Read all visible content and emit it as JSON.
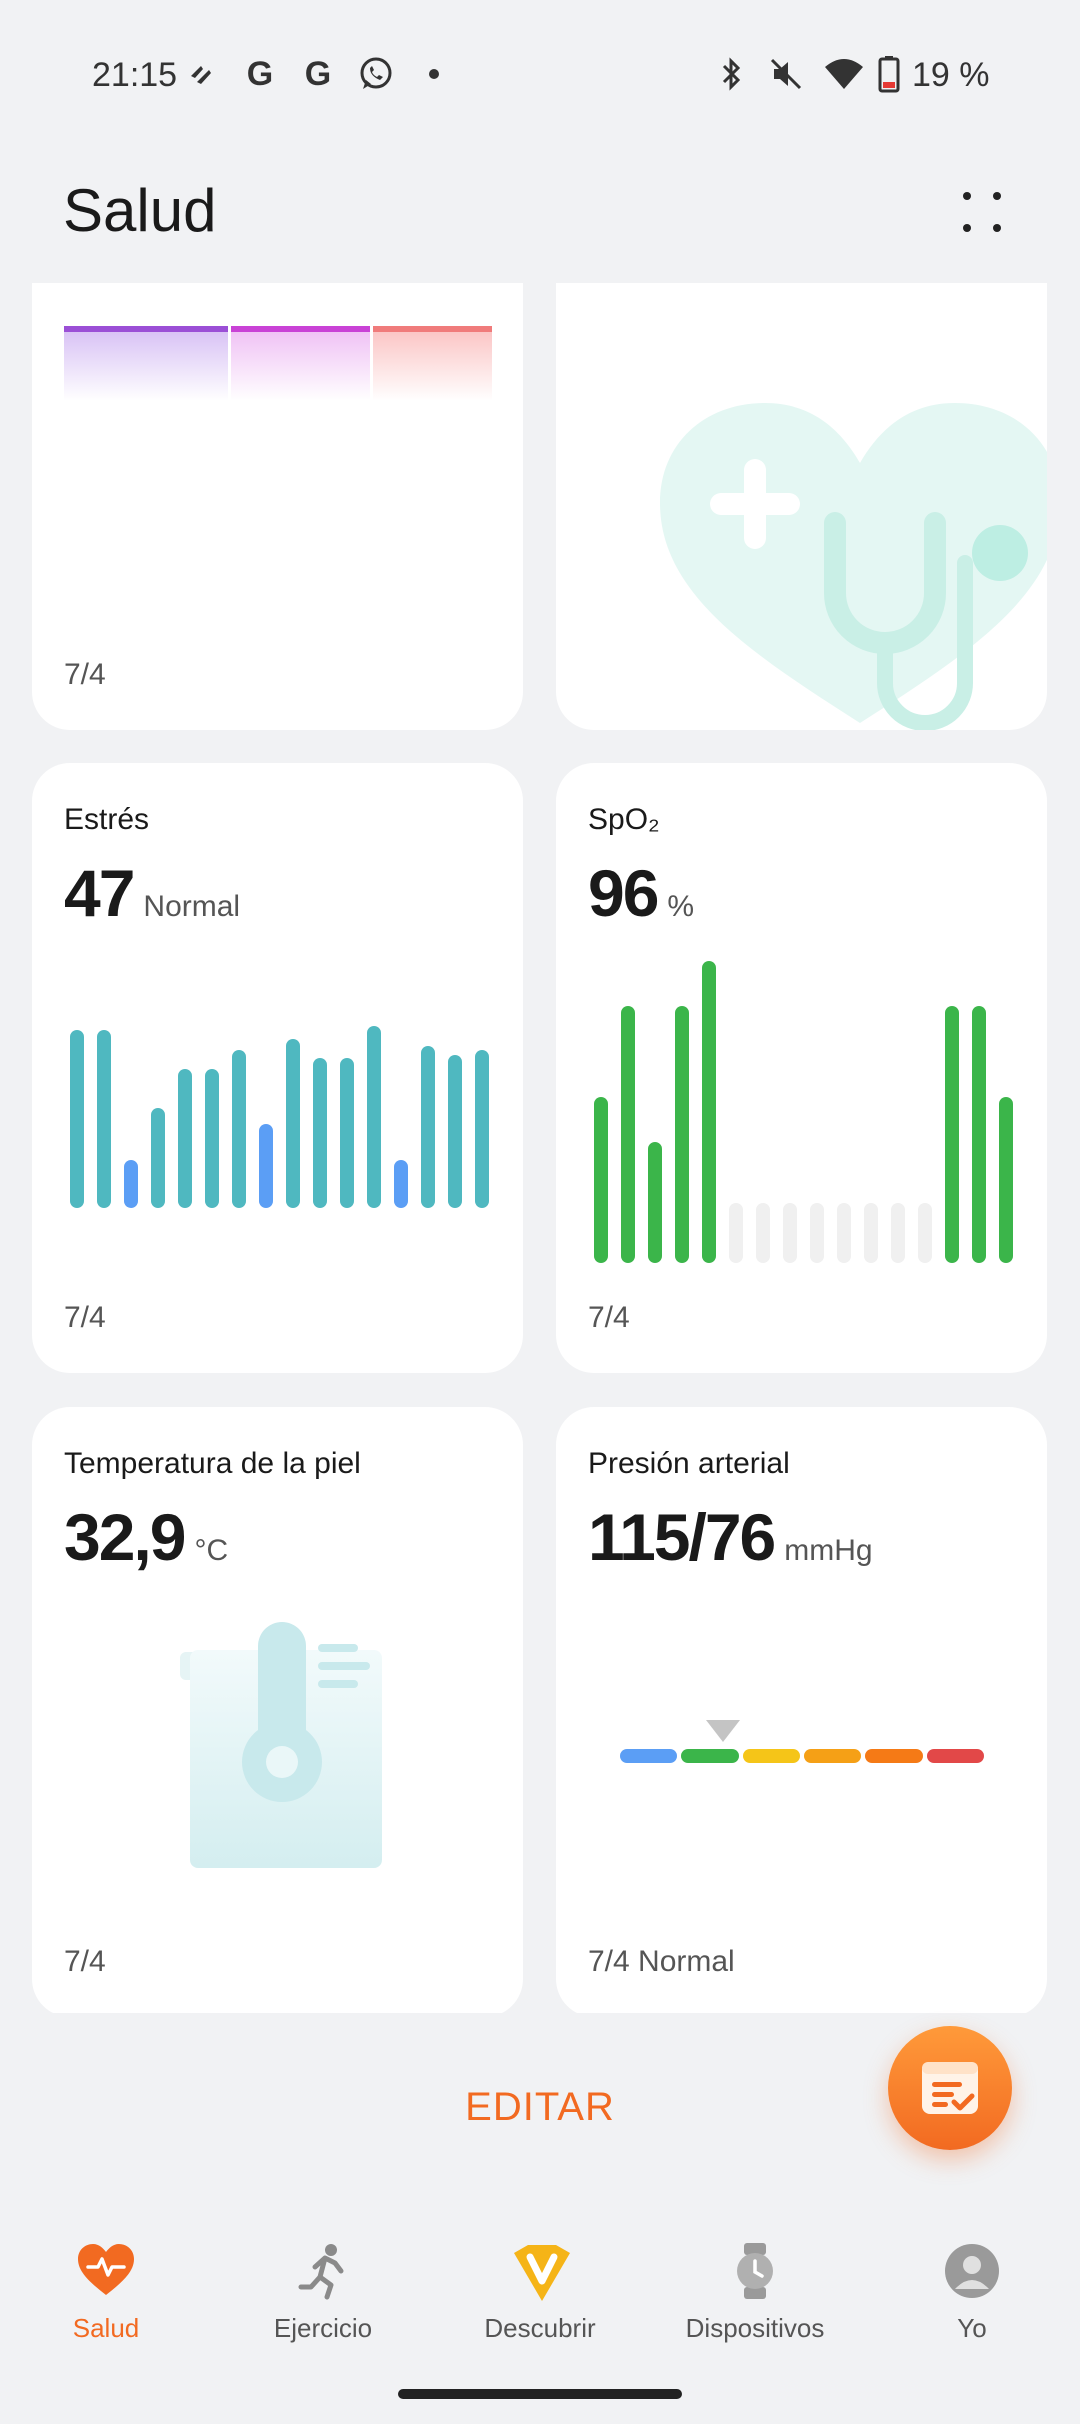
{
  "status_bar": {
    "time": "21:15",
    "battery": "19 %"
  },
  "header": {
    "title": "Salud"
  },
  "cards": {
    "top_left": {
      "date": "7/4"
    },
    "top_right": {},
    "stress": {
      "label": "Estrés",
      "value": "47",
      "unit": "Normal",
      "date": "7/4"
    },
    "spo2": {
      "label": "SpO₂",
      "value": "96",
      "unit": "%",
      "date": "7/4"
    },
    "skin_temp": {
      "label": "Temperatura de la piel",
      "value": "32,9",
      "unit": "°C",
      "date": "7/4"
    },
    "blood_pressure": {
      "label": "Presión arterial",
      "value": "115/76",
      "unit": "mmHg",
      "date": "7/4 Normal"
    }
  },
  "chart_data": [
    {
      "type": "bar",
      "name_ref": "stress",
      "values": [
        1.0,
        1.0,
        0.27,
        0.56,
        0.78,
        0.78,
        0.89,
        0.47,
        0.95,
        0.84,
        0.84,
        1.02,
        0.27,
        0.91,
        0.86,
        0.89
      ],
      "colors": [
        "#4fb8c0",
        "#4fb8c0",
        "#5b9ef5",
        "#4fb8c0",
        "#4fb8c0",
        "#4fb8c0",
        "#4fb8c0",
        "#5b9ef5",
        "#4fb8c0",
        "#4fb8c0",
        "#4fb8c0",
        "#4fb8c0",
        "#5b9ef5",
        "#4fb8c0",
        "#4fb8c0",
        "#4fb8c0"
      ]
    },
    {
      "type": "bar",
      "name_ref": "spo2",
      "values": [
        0.55,
        0.85,
        0.4,
        0.85,
        1.0,
        0.2,
        0.2,
        0.2,
        0.2,
        0.2,
        0.2,
        0.2,
        0.2,
        0.85,
        0.85,
        0.55
      ],
      "colors": [
        "#3bb54a",
        "#3bb54a",
        "#3bb54a",
        "#3bb54a",
        "#3bb54a",
        "#f0f0f0",
        "#f0f0f0",
        "#f0f0f0",
        "#f0f0f0",
        "#f0f0f0",
        "#f0f0f0",
        "#f0f0f0",
        "#f0f0f0",
        "#3bb54a",
        "#3bb54a",
        "#3bb54a"
      ]
    }
  ],
  "actions": {
    "edit_label": "EDITAR"
  },
  "bottom_nav": {
    "items": [
      {
        "label": "Salud",
        "active": true
      },
      {
        "label": "Ejercicio",
        "active": false
      },
      {
        "label": "Descubrir",
        "active": false
      },
      {
        "label": "Dispositivos",
        "active": false
      },
      {
        "label": "Yo",
        "active": false
      }
    ]
  },
  "colors": {
    "accent": "#f26a21",
    "stress_bar": "#4fb8c0",
    "stress_low": "#5b9ef5",
    "spo2_bar": "#3bb54a"
  }
}
